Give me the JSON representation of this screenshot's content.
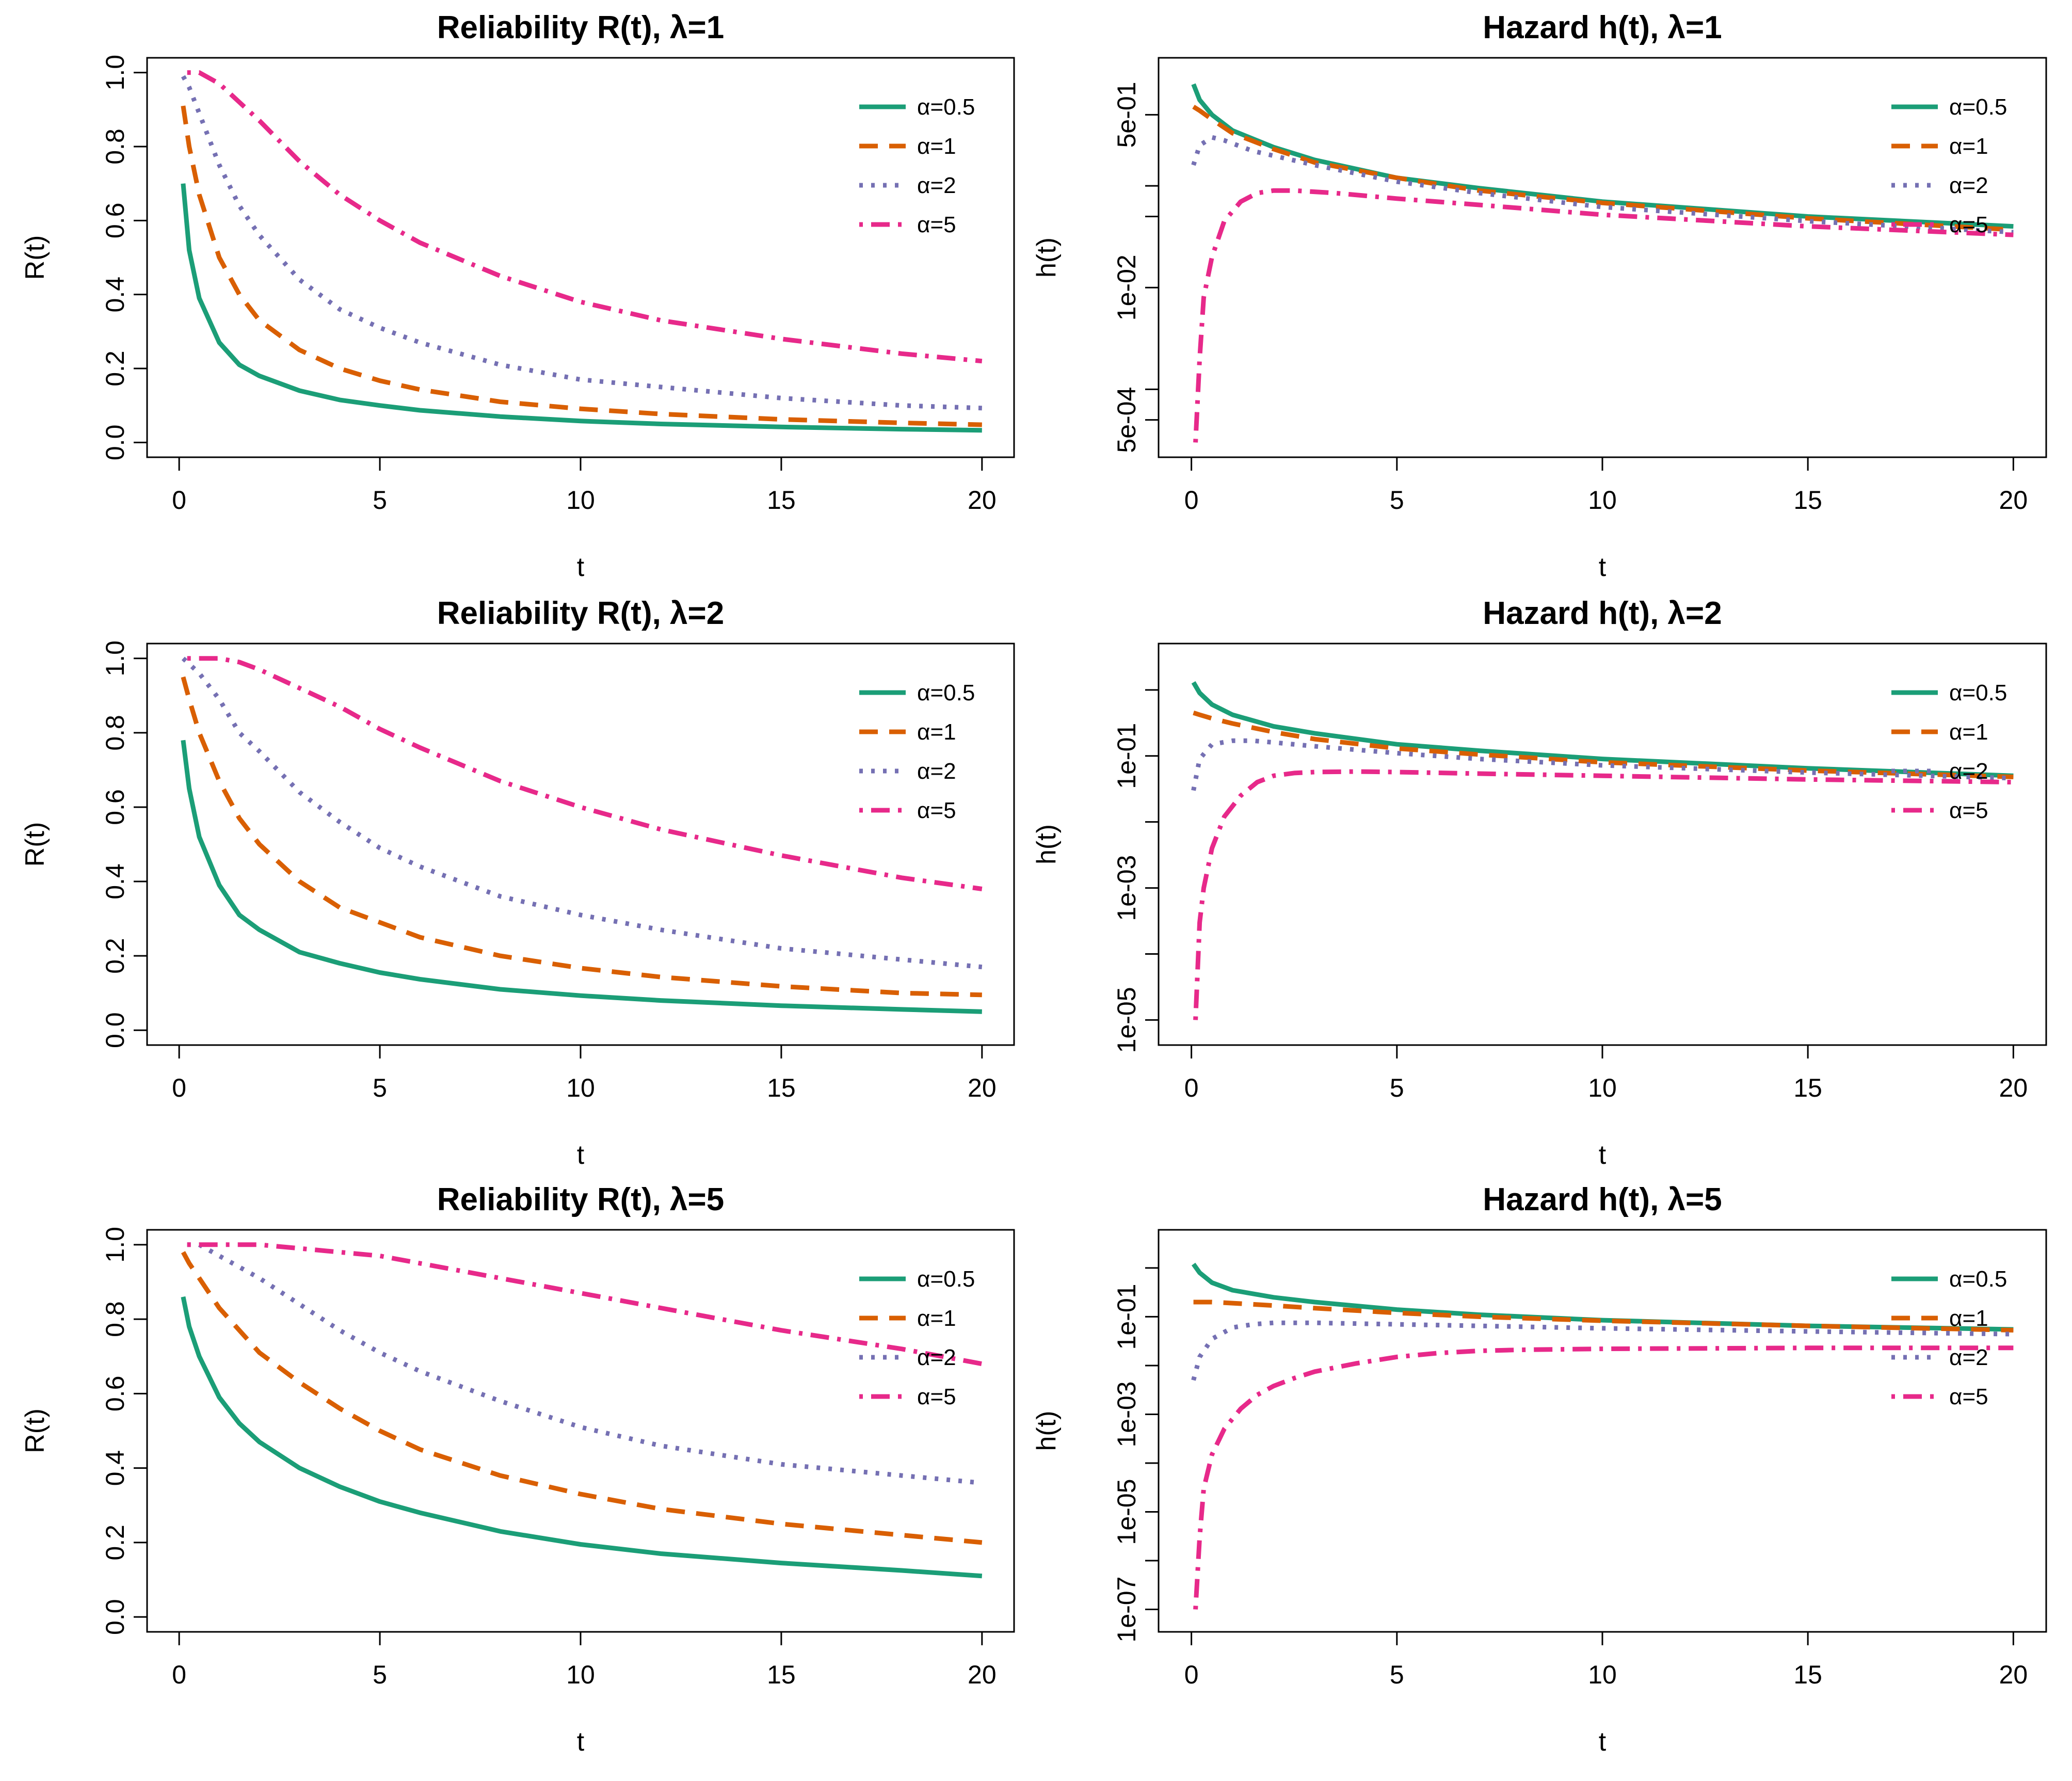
{
  "figure": {
    "layout": "3 rows x 2 columns",
    "series_colors": {
      "a0.5": "#1b9e77",
      "a1": "#d95f02",
      "a2": "#7570b3",
      "a5": "#e7298a"
    }
  },
  "chart_data": [
    {
      "type": "line",
      "title": "Reliability R(t), λ=1",
      "xlabel": "t",
      "ylabel": "R(t)",
      "yscale": "linear",
      "xlim": [
        0,
        20
      ],
      "ylim": [
        0,
        1
      ],
      "xticks": [
        "0",
        "5",
        "10",
        "15",
        "20"
      ],
      "yticks": [
        "0.0",
        "0.2",
        "0.4",
        "0.6",
        "0.8",
        "1.0"
      ],
      "ytick_values": [
        0,
        0.2,
        0.4,
        0.6,
        0.8,
        1.0
      ],
      "legend": [
        "α=0.5",
        "α=1",
        "α=2",
        "α=5"
      ],
      "legend_position": "top-right",
      "series": [
        {
          "name": "α=0.5",
          "color": "#1b9e77",
          "style": "solid",
          "x": [
            0.1,
            0.25,
            0.5,
            1,
            1.5,
            2,
            3,
            4,
            5,
            6,
            8,
            10,
            12,
            15,
            18,
            20
          ],
          "values": [
            0.7,
            0.52,
            0.39,
            0.27,
            0.21,
            0.18,
            0.14,
            0.115,
            0.1,
            0.087,
            0.07,
            0.058,
            0.05,
            0.042,
            0.036,
            0.033
          ]
        },
        {
          "name": "α=1",
          "color": "#d95f02",
          "style": "dashed",
          "x": [
            0.1,
            0.25,
            0.5,
            1,
            1.5,
            2,
            3,
            4,
            5,
            6,
            8,
            10,
            12,
            15,
            18,
            20
          ],
          "values": [
            0.91,
            0.8,
            0.67,
            0.5,
            0.4,
            0.33,
            0.25,
            0.2,
            0.167,
            0.143,
            0.11,
            0.091,
            0.077,
            0.0625,
            0.053,
            0.048
          ]
        },
        {
          "name": "α=2",
          "color": "#7570b3",
          "style": "dotted",
          "x": [
            0.1,
            0.25,
            0.5,
            1,
            1.5,
            2,
            3,
            4,
            5,
            6,
            8,
            10,
            12,
            15,
            18,
            20
          ],
          "values": [
            0.99,
            0.96,
            0.89,
            0.75,
            0.64,
            0.56,
            0.44,
            0.36,
            0.31,
            0.27,
            0.21,
            0.17,
            0.15,
            0.12,
            0.1,
            0.093
          ]
        },
        {
          "name": "α=5",
          "color": "#e7298a",
          "style": "dotdash",
          "x": [
            0.2,
            0.5,
            1,
            1.5,
            2,
            3,
            4,
            5,
            6,
            8,
            10,
            12,
            15,
            18,
            20
          ],
          "values": [
            1.0,
            1.0,
            0.97,
            0.92,
            0.87,
            0.76,
            0.67,
            0.6,
            0.54,
            0.45,
            0.38,
            0.33,
            0.28,
            0.24,
            0.22
          ]
        }
      ]
    },
    {
      "type": "line",
      "title": "Hazard h(t), λ=1",
      "xlabel": "t",
      "ylabel": "h(t)",
      "yscale": "log",
      "xlim": [
        0,
        20
      ],
      "ylim": [
        0.0003,
        1.3
      ],
      "xticks": [
        "0",
        "5",
        "10",
        "15",
        "20"
      ],
      "yticks": [
        "5e-04",
        "1e-02",
        "5e-01",
        "",
        "",
        ""
      ],
      "ytick_values": [
        0.0005,
        0.01,
        0.5,
        0.001,
        0.1,
        0.05
      ],
      "legend": [
        "α=0.5",
        "α=1",
        "α=2",
        "α=5"
      ],
      "legend_position": "top-right",
      "series": [
        {
          "name": "α=0.5",
          "color": "#1b9e77",
          "style": "solid",
          "x": [
            0.05,
            0.2,
            0.5,
            1,
            2,
            3,
            5,
            7,
            10,
            15,
            20
          ],
          "values": [
            1.0,
            0.7,
            0.5,
            0.35,
            0.24,
            0.18,
            0.12,
            0.095,
            0.07,
            0.05,
            0.04
          ]
        },
        {
          "name": "α=1",
          "color": "#d95f02",
          "style": "dashed",
          "x": [
            0.05,
            0.2,
            0.5,
            1,
            2,
            3,
            5,
            7,
            10,
            15,
            20
          ],
          "values": [
            0.6,
            0.55,
            0.45,
            0.33,
            0.23,
            0.17,
            0.12,
            0.09,
            0.068,
            0.048,
            0.037
          ]
        },
        {
          "name": "α=2",
          "color": "#7570b3",
          "style": "dotted",
          "x": [
            0.05,
            0.2,
            0.5,
            0.8,
            1.5,
            3,
            5,
            7,
            10,
            15,
            20
          ],
          "values": [
            0.16,
            0.25,
            0.3,
            0.28,
            0.22,
            0.16,
            0.11,
            0.085,
            0.062,
            0.045,
            0.035
          ]
        },
        {
          "name": "α=5",
          "color": "#e7298a",
          "style": "dotdash",
          "x": [
            0.1,
            0.2,
            0.3,
            0.5,
            0.8,
            1.2,
            1.6,
            2,
            2.5,
            3.5,
            5,
            7,
            10,
            15,
            20
          ],
          "values": [
            0.0003,
            0.002,
            0.008,
            0.02,
            0.045,
            0.07,
            0.085,
            0.09,
            0.09,
            0.085,
            0.075,
            0.065,
            0.052,
            0.04,
            0.033
          ]
        }
      ]
    },
    {
      "type": "line",
      "title": "Reliability R(t), λ=2",
      "xlabel": "t",
      "ylabel": "R(t)",
      "yscale": "linear",
      "xlim": [
        0,
        20
      ],
      "ylim": [
        0,
        1
      ],
      "xticks": [
        "0",
        "5",
        "10",
        "15",
        "20"
      ],
      "yticks": [
        "0.0",
        "0.2",
        "0.4",
        "0.6",
        "0.8",
        "1.0"
      ],
      "ytick_values": [
        0,
        0.2,
        0.4,
        0.6,
        0.8,
        1.0
      ],
      "legend": [
        "α=0.5",
        "α=1",
        "α=2",
        "α=5"
      ],
      "legend_position": "top-right",
      "series": [
        {
          "name": "α=0.5",
          "color": "#1b9e77",
          "style": "solid",
          "x": [
            0.1,
            0.25,
            0.5,
            1,
            1.5,
            2,
            3,
            4,
            5,
            6,
            8,
            10,
            12,
            15,
            18,
            20
          ],
          "values": [
            0.78,
            0.65,
            0.52,
            0.39,
            0.31,
            0.27,
            0.21,
            0.18,
            0.155,
            0.137,
            0.11,
            0.093,
            0.08,
            0.066,
            0.056,
            0.05
          ]
        },
        {
          "name": "α=1",
          "color": "#d95f02",
          "style": "dashed",
          "x": [
            0.1,
            0.25,
            0.5,
            1,
            1.5,
            2,
            3,
            4,
            5,
            6,
            8,
            10,
            12,
            15,
            18,
            20
          ],
          "values": [
            0.95,
            0.89,
            0.8,
            0.67,
            0.57,
            0.5,
            0.4,
            0.33,
            0.29,
            0.25,
            0.2,
            0.167,
            0.143,
            0.118,
            0.1,
            0.095
          ]
        },
        {
          "name": "α=2",
          "color": "#7570b3",
          "style": "dotted",
          "x": [
            0.1,
            0.5,
            1,
            1.5,
            2,
            3,
            4,
            5,
            6,
            8,
            10,
            12,
            15,
            18,
            20
          ],
          "values": [
            1.0,
            0.96,
            0.89,
            0.8,
            0.75,
            0.64,
            0.56,
            0.49,
            0.44,
            0.36,
            0.31,
            0.27,
            0.22,
            0.19,
            0.17
          ]
        },
        {
          "name": "α=5",
          "color": "#e7298a",
          "style": "dotdash",
          "x": [
            0.2,
            0.5,
            1,
            1.5,
            2,
            3,
            4,
            5,
            6,
            8,
            10,
            12,
            15,
            18,
            20
          ],
          "values": [
            1.0,
            1.0,
            1.0,
            0.99,
            0.97,
            0.92,
            0.87,
            0.81,
            0.76,
            0.67,
            0.6,
            0.54,
            0.47,
            0.41,
            0.38
          ]
        }
      ]
    },
    {
      "type": "line",
      "title": "Hazard h(t), λ=2",
      "xlabel": "t",
      "ylabel": "h(t)",
      "yscale": "log",
      "xlim": [
        0,
        20
      ],
      "ylim": [
        7e-06,
        3
      ],
      "xticks": [
        "0",
        "5",
        "10",
        "15",
        "20"
      ],
      "yticks": [
        "1e-05",
        "1e-03",
        "1e-01",
        "",
        "",
        ""
      ],
      "ytick_values": [
        1e-05,
        0.001,
        0.1,
        0.0001,
        0.01,
        1
      ],
      "legend": [
        "α=0.5",
        "α=1",
        "α=2",
        "α=5"
      ],
      "legend_position": "top-right",
      "series": [
        {
          "name": "α=0.5",
          "color": "#1b9e77",
          "style": "solid",
          "x": [
            0.05,
            0.2,
            0.5,
            1,
            2,
            3,
            5,
            7,
            10,
            15,
            20
          ],
          "values": [
            1.3,
            0.9,
            0.6,
            0.42,
            0.28,
            0.22,
            0.15,
            0.12,
            0.09,
            0.065,
            0.05
          ]
        },
        {
          "name": "α=1",
          "color": "#d95f02",
          "style": "dashed",
          "x": [
            0.05,
            0.2,
            0.5,
            1,
            2,
            3,
            5,
            7,
            10,
            15,
            20
          ],
          "values": [
            0.45,
            0.42,
            0.37,
            0.31,
            0.23,
            0.18,
            0.13,
            0.105,
            0.08,
            0.06,
            0.048
          ]
        },
        {
          "name": "α=2",
          "color": "#7570b3",
          "style": "dotted",
          "x": [
            0.05,
            0.2,
            0.5,
            1,
            1.5,
            2,
            3,
            5,
            7,
            10,
            15,
            20
          ],
          "values": [
            0.03,
            0.09,
            0.15,
            0.17,
            0.17,
            0.16,
            0.14,
            0.11,
            0.09,
            0.072,
            0.056,
            0.046
          ]
        },
        {
          "name": "α=5",
          "color": "#e7298a",
          "style": "dotdash",
          "x": [
            0.1,
            0.2,
            0.3,
            0.5,
            0.8,
            1.2,
            1.6,
            2,
            2.5,
            3,
            4,
            5,
            7,
            10,
            15,
            20
          ],
          "values": [
            1e-05,
            0.0003,
            0.001,
            0.004,
            0.012,
            0.025,
            0.04,
            0.05,
            0.055,
            0.057,
            0.058,
            0.057,
            0.054,
            0.05,
            0.044,
            0.04
          ]
        }
      ]
    },
    {
      "type": "line",
      "title": "Reliability R(t), λ=5",
      "xlabel": "t",
      "ylabel": "R(t)",
      "yscale": "linear",
      "xlim": [
        0,
        20
      ],
      "ylim": [
        0,
        1
      ],
      "xticks": [
        "0",
        "5",
        "10",
        "15",
        "20"
      ],
      "yticks": [
        "0.0",
        "0.2",
        "0.4",
        "0.6",
        "0.8",
        "1.0"
      ],
      "ytick_values": [
        0,
        0.2,
        0.4,
        0.6,
        0.8,
        1.0
      ],
      "legend": [
        "α=0.5",
        "α=1",
        "α=2",
        "α=5"
      ],
      "legend_position": "top-right",
      "series": [
        {
          "name": "α=0.5",
          "color": "#1b9e77",
          "style": "solid",
          "x": [
            0.1,
            0.25,
            0.5,
            1,
            1.5,
            2,
            3,
            4,
            5,
            6,
            8,
            10,
            12,
            15,
            18,
            20
          ],
          "values": [
            0.86,
            0.78,
            0.7,
            0.59,
            0.52,
            0.47,
            0.4,
            0.35,
            0.31,
            0.28,
            0.23,
            0.195,
            0.17,
            0.145,
            0.125,
            0.11
          ]
        },
        {
          "name": "α=1",
          "color": "#d95f02",
          "style": "dashed",
          "x": [
            0.1,
            0.25,
            0.5,
            1,
            1.5,
            2,
            3,
            4,
            5,
            6,
            8,
            10,
            12,
            15,
            18,
            20
          ],
          "values": [
            0.98,
            0.95,
            0.91,
            0.83,
            0.77,
            0.71,
            0.63,
            0.56,
            0.5,
            0.45,
            0.38,
            0.33,
            0.29,
            0.25,
            0.22,
            0.2
          ]
        },
        {
          "name": "α=2",
          "color": "#7570b3",
          "style": "dotted",
          "x": [
            0.2,
            0.5,
            1,
            2,
            3,
            4,
            5,
            6,
            8,
            10,
            12,
            15,
            18,
            20
          ],
          "values": [
            1.0,
            1.0,
            0.97,
            0.91,
            0.84,
            0.77,
            0.71,
            0.66,
            0.58,
            0.51,
            0.46,
            0.41,
            0.38,
            0.36
          ]
        },
        {
          "name": "α=5",
          "color": "#e7298a",
          "style": "dotdash",
          "x": [
            0.2,
            1,
            2,
            3,
            4,
            5,
            6,
            8,
            10,
            12,
            15,
            18,
            20
          ],
          "values": [
            1.0,
            1.0,
            1.0,
            0.99,
            0.98,
            0.97,
            0.95,
            0.91,
            0.87,
            0.83,
            0.77,
            0.72,
            0.68
          ]
        }
      ]
    },
    {
      "type": "line",
      "title": "Hazard h(t), λ=5",
      "xlabel": "t",
      "ylabel": "h(t)",
      "yscale": "log",
      "xlim": [
        0,
        20
      ],
      "ylim": [
        7e-08,
        3
      ],
      "xticks": [
        "0",
        "5",
        "10",
        "15",
        "20"
      ],
      "yticks": [
        "1e-07",
        "1e-05",
        "1e-03",
        "1e-01",
        "",
        "",
        "",
        ""
      ],
      "ytick_values": [
        1e-07,
        1e-05,
        0.001,
        0.1,
        1e-06,
        0.0001,
        0.01,
        1
      ],
      "legend": [
        "α=0.5",
        "α=1",
        "α=2",
        "α=5"
      ],
      "legend_position": "top-right",
      "series": [
        {
          "name": "α=0.5",
          "color": "#1b9e77",
          "style": "solid",
          "x": [
            0.05,
            0.2,
            0.5,
            1,
            2,
            3,
            5,
            7,
            10,
            15,
            20
          ],
          "values": [
            1.2,
            0.8,
            0.5,
            0.35,
            0.25,
            0.2,
            0.14,
            0.11,
            0.085,
            0.065,
            0.055
          ]
        },
        {
          "name": "α=1",
          "color": "#d95f02",
          "style": "dashed",
          "x": [
            0.05,
            0.5,
            1,
            2,
            3,
            5,
            7,
            10,
            15,
            20
          ],
          "values": [
            0.2,
            0.2,
            0.19,
            0.17,
            0.15,
            0.12,
            0.1,
            0.083,
            0.065,
            0.053
          ]
        },
        {
          "name": "α=2",
          "color": "#7570b3",
          "style": "dotted",
          "x": [
            0.05,
            0.2,
            0.5,
            1,
            1.5,
            2,
            3,
            5,
            7,
            10,
            15,
            20
          ],
          "values": [
            0.005,
            0.015,
            0.035,
            0.06,
            0.07,
            0.075,
            0.075,
            0.07,
            0.065,
            0.058,
            0.05,
            0.044
          ]
        },
        {
          "name": "α=5",
          "color": "#e7298a",
          "style": "dotdash",
          "x": [
            0.1,
            0.2,
            0.3,
            0.5,
            0.8,
            1.2,
            1.6,
            2,
            2.5,
            3,
            4,
            5,
            6,
            7,
            8,
            10,
            15,
            20
          ],
          "values": [
            1e-07,
            3e-06,
            3e-05,
            0.00015,
            0.0005,
            0.0013,
            0.0025,
            0.0038,
            0.0055,
            0.0075,
            0.011,
            0.015,
            0.018,
            0.02,
            0.021,
            0.022,
            0.023,
            0.023
          ]
        }
      ]
    }
  ]
}
